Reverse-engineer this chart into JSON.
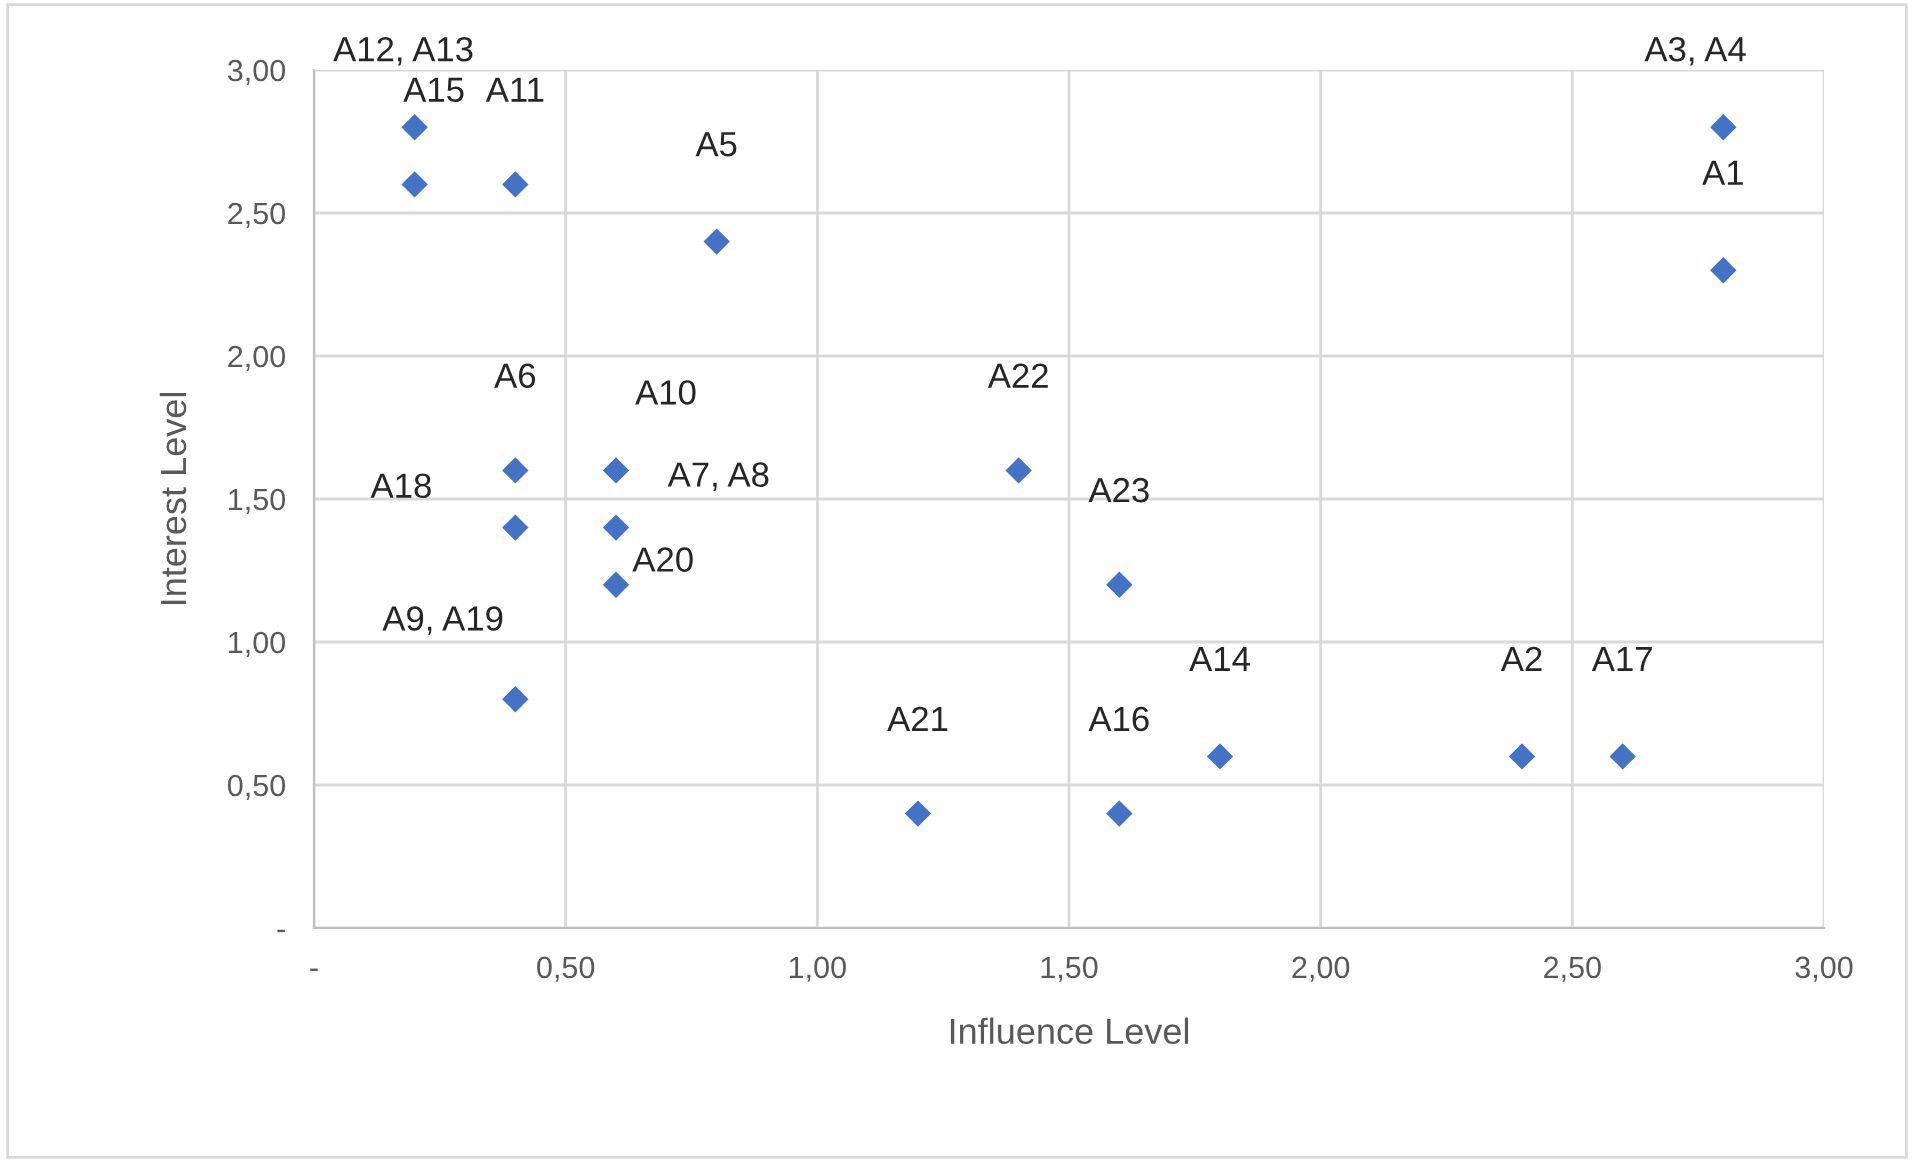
{
  "chart_data": {
    "type": "scatter",
    "xlabel": "Influence Level",
    "ylabel": "Interest Level",
    "marker": "diamond",
    "grid": true,
    "legend": false,
    "xlim": [
      0,
      3
    ],
    "ylim": [
      0,
      3
    ],
    "xticks": [
      {
        "value": 0,
        "label": "-"
      },
      {
        "value": 0.5,
        "label": "0,50"
      },
      {
        "value": 1,
        "label": "1,00"
      },
      {
        "value": 1.5,
        "label": "1,50"
      },
      {
        "value": 2,
        "label": "2,00"
      },
      {
        "value": 2.5,
        "label": "2,50"
      },
      {
        "value": 3,
        "label": "3,00"
      }
    ],
    "yticks": [
      {
        "value": 0,
        "label": "-"
      },
      {
        "value": 0.5,
        "label": "0,50"
      },
      {
        "value": 1,
        "label": "1,00"
      },
      {
        "value": 1.5,
        "label": "1,50"
      },
      {
        "value": 2,
        "label": "2,00"
      },
      {
        "value": 2.5,
        "label": "2,50"
      },
      {
        "value": 3,
        "label": "3,00"
      }
    ],
    "series": [
      {
        "color": "#4472c4",
        "x": [
          0.2,
          0.2,
          0.4,
          0.8,
          2.8,
          2.8,
          0.4,
          0.6,
          0.4,
          0.6,
          0.6,
          0.4,
          1.4,
          1.6,
          1.2,
          1.6,
          1.8,
          2.4,
          2.6
        ],
        "values": [
          2.8,
          2.6,
          2.6,
          2.4,
          2.8,
          2.3,
          1.6,
          1.6,
          1.4,
          1.4,
          1.2,
          0.8,
          1.6,
          1.2,
          0.4,
          0.4,
          0.6,
          0.6,
          0.6
        ]
      }
    ],
    "annotations": [
      {
        "text": "A12, A13",
        "x": 0.2,
        "y": 2.8
      },
      {
        "text": "A15",
        "x": 0.2,
        "y": 2.6
      },
      {
        "text": "A11",
        "x": 0.4,
        "y": 2.6
      },
      {
        "text": "A5",
        "x": 0.8,
        "y": 2.4
      },
      {
        "text": "A3, A4",
        "x": 2.8,
        "y": 2.8
      },
      {
        "text": "A1",
        "x": 2.8,
        "y": 2.3
      },
      {
        "text": "A6",
        "x": 0.4,
        "y": 1.6
      },
      {
        "text": "A10",
        "x": 0.6,
        "y": 1.6
      },
      {
        "text": "A18",
        "x": 0.4,
        "y": 1.4
      },
      {
        "text": "A7, A8",
        "x": 0.6,
        "y": 1.4
      },
      {
        "text": "A20",
        "x": 0.6,
        "y": 1.2
      },
      {
        "text": "A9, A19",
        "x": 0.4,
        "y": 0.8
      },
      {
        "text": "A22",
        "x": 1.4,
        "y": 1.6
      },
      {
        "text": "A23",
        "x": 1.6,
        "y": 1.2
      },
      {
        "text": "A21",
        "x": 1.2,
        "y": 0.4
      },
      {
        "text": "A16",
        "x": 1.6,
        "y": 0.4
      },
      {
        "text": "A14",
        "x": 1.8,
        "y": 0.6
      },
      {
        "text": "A2",
        "x": 2.4,
        "y": 0.6
      },
      {
        "text": "A17",
        "x": 2.6,
        "y": 0.6
      }
    ]
  }
}
